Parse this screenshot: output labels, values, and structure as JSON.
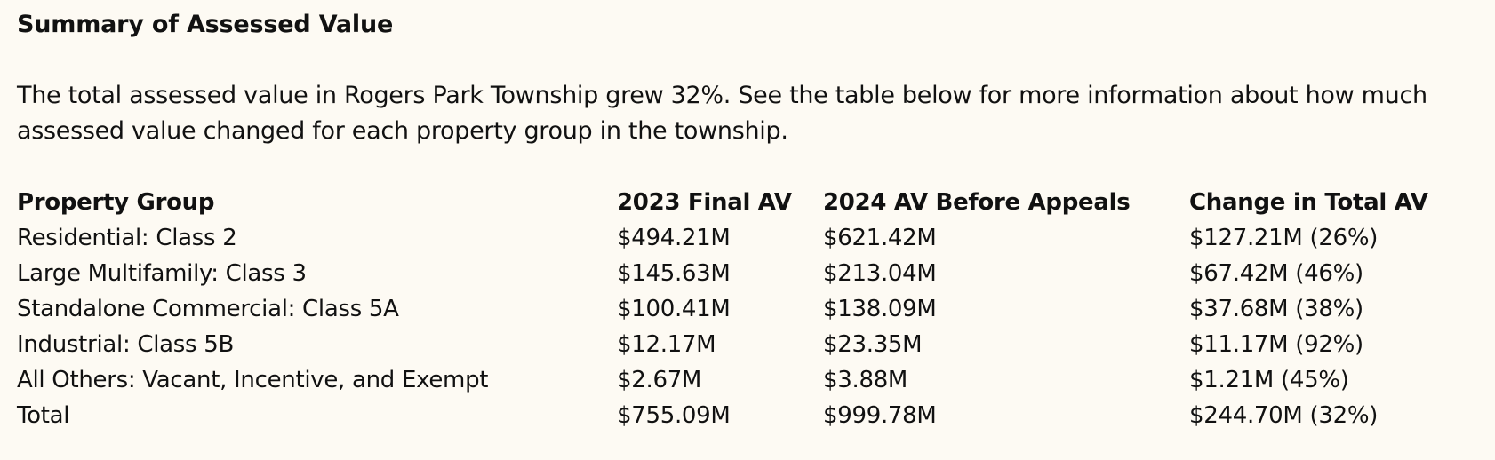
{
  "heading": "Summary of Assessed Value",
  "intro": "The total assessed value in Rogers Park Township grew 32%. See the table below for more information about how much assessed value changed for each property group in the township.",
  "table": {
    "headers": [
      "Property Group",
      "2023 Final AV",
      "2024 AV Before Appeals",
      "Change in Total AV"
    ],
    "rows": [
      [
        "Residential: Class 2",
        "$494.21M",
        "$621.42M",
        "$127.21M (26%)"
      ],
      [
        "Large Multifamily: Class 3",
        "$145.63M",
        "$213.04M",
        "$67.42M (46%)"
      ],
      [
        "Standalone Commercial: Class 5A",
        "$100.41M",
        "$138.09M",
        "$37.68M (38%)"
      ],
      [
        "Industrial: Class 5B",
        "$12.17M",
        "$23.35M",
        "$11.17M (92%)"
      ],
      [
        "All Others: Vacant, Incentive, and Exempt",
        "$2.67M",
        "$3.88M",
        "$1.21M (45%)"
      ],
      [
        "Total",
        "$755.09M",
        "$999.78M",
        "$244.70M (32%)"
      ]
    ]
  },
  "colors": {
    "background": "#fdfaf3",
    "text": "#111111"
  }
}
